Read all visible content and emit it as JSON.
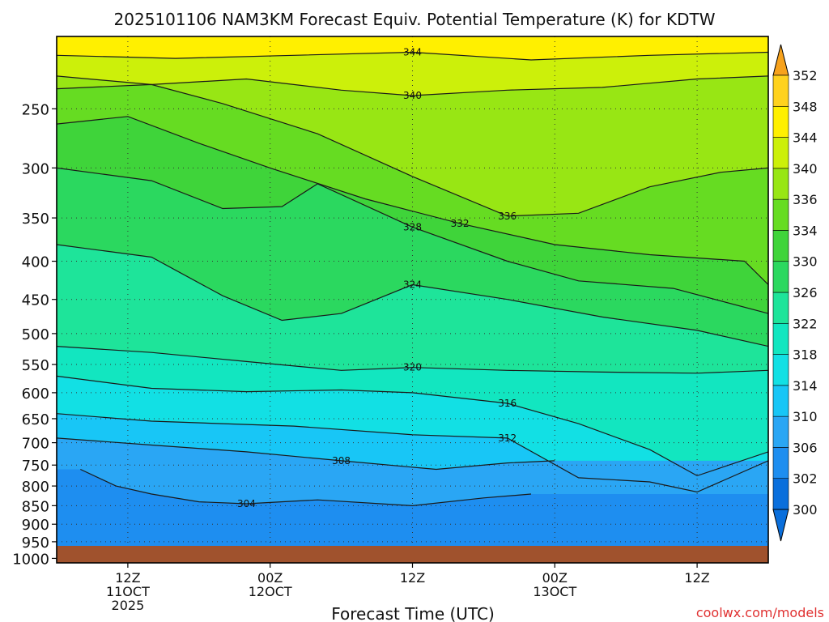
{
  "chart_data": {
    "type": "heatmap",
    "title": "2025101106 NAM3KM Forecast Equiv. Potential Temperature (K) for KDTW",
    "xlabel": "Forecast Time (UTC)",
    "ylabel": "",
    "watermark": "coolwx.com/models",
    "y_axis": {
      "scale": "log-pressure",
      "unit": "hPa",
      "range": [
        1014,
        200
      ],
      "ticks": [
        250,
        300,
        350,
        400,
        450,
        500,
        550,
        600,
        650,
        700,
        750,
        800,
        850,
        900,
        950,
        1000
      ]
    },
    "x_axis": {
      "range_hours": [
        0,
        60
      ],
      "ticks": [
        {
          "hour": 6,
          "line1": "12Z",
          "line2": "11OCT",
          "line3": "2025"
        },
        {
          "hour": 18,
          "line1": "00Z",
          "line2": "12OCT",
          "line3": ""
        },
        {
          "hour": 30,
          "line1": "12Z",
          "line2": "",
          "line3": ""
        },
        {
          "hour": 42,
          "line1": "00Z",
          "line2": "13OCT",
          "line3": ""
        },
        {
          "hour": 54,
          "line1": "12Z",
          "line2": "",
          "line3": ""
        }
      ]
    },
    "colorbar": {
      "levels": [
        300,
        302,
        306,
        310,
        314,
        318,
        322,
        326,
        330,
        334,
        336,
        340,
        344,
        348,
        352
      ],
      "colors": [
        "#0a6fdc",
        "#1e8ef0",
        "#2aa6f4",
        "#18c6f6",
        "#12e0e4",
        "#12e6c0",
        "#1ee49a",
        "#2bd85f",
        "#3fd43a",
        "#66dc22",
        "#98e614",
        "#ccf00a",
        "#fff000",
        "#ffd21e",
        "#f7a21c"
      ],
      "extend": "both"
    },
    "contours": [
      {
        "value": 344,
        "pressure_by_hour": [
          [
            0,
            212
          ],
          [
            10,
            214
          ],
          [
            20,
            212
          ],
          [
            30,
            210
          ],
          [
            40,
            215
          ],
          [
            50,
            212
          ],
          [
            60,
            210
          ]
        ]
      },
      {
        "value": 340,
        "pressure_by_hour": [
          [
            0,
            226
          ],
          [
            8,
            232
          ],
          [
            16,
            228
          ],
          [
            24,
            236
          ],
          [
            30,
            240
          ],
          [
            38,
            236
          ],
          [
            46,
            234
          ],
          [
            54,
            228
          ],
          [
            60,
            226
          ]
        ]
      },
      {
        "value": 336,
        "pressure_by_hour": [
          [
            0,
            235
          ],
          [
            8,
            232
          ],
          [
            14,
            246
          ],
          [
            22,
            270
          ],
          [
            30,
            308
          ],
          [
            38,
            348
          ],
          [
            44,
            345
          ],
          [
            50,
            318
          ],
          [
            56,
            304
          ],
          [
            60,
            300
          ]
        ]
      },
      {
        "value": 332,
        "pressure_by_hour": [
          [
            0,
            262
          ],
          [
            6,
            256
          ],
          [
            12,
            278
          ],
          [
            18,
            300
          ],
          [
            26,
            330
          ],
          [
            34,
            356
          ],
          [
            42,
            380
          ],
          [
            50,
            392
          ],
          [
            58,
            400
          ],
          [
            60,
            430
          ]
        ]
      },
      {
        "value": 328,
        "pressure_by_hour": [
          [
            0,
            300
          ],
          [
            8,
            312
          ],
          [
            14,
            340
          ],
          [
            19,
            338
          ],
          [
            22,
            315
          ],
          [
            30,
            360
          ],
          [
            38,
            400
          ],
          [
            44,
            425
          ],
          [
            52,
            435
          ],
          [
            60,
            470
          ]
        ]
      },
      {
        "value": 324,
        "pressure_by_hour": [
          [
            0,
            380
          ],
          [
            8,
            395
          ],
          [
            14,
            445
          ],
          [
            19,
            480
          ],
          [
            24,
            470
          ],
          [
            30,
            430
          ],
          [
            38,
            450
          ],
          [
            46,
            475
          ],
          [
            54,
            495
          ],
          [
            60,
            520
          ]
        ]
      },
      {
        "value": 320,
        "pressure_by_hour": [
          [
            0,
            520
          ],
          [
            8,
            530
          ],
          [
            16,
            545
          ],
          [
            24,
            560
          ],
          [
            30,
            555
          ],
          [
            38,
            560
          ],
          [
            46,
            563
          ],
          [
            54,
            565
          ],
          [
            60,
            560
          ]
        ]
      },
      {
        "value": 316,
        "pressure_by_hour": [
          [
            0,
            570
          ],
          [
            8,
            592
          ],
          [
            16,
            598
          ],
          [
            24,
            595
          ],
          [
            30,
            600
          ],
          [
            38,
            620
          ],
          [
            44,
            660
          ],
          [
            50,
            715
          ],
          [
            54,
            775
          ],
          [
            60,
            720
          ]
        ]
      },
      {
        "value": 312,
        "pressure_by_hour": [
          [
            0,
            640
          ],
          [
            8,
            655
          ],
          [
            14,
            660
          ],
          [
            20,
            665
          ],
          [
            30,
            683
          ],
          [
            38,
            690
          ],
          [
            44,
            780
          ],
          [
            50,
            790
          ],
          [
            54,
            815
          ],
          [
            60,
            740
          ]
        ]
      },
      {
        "value": 308,
        "pressure_by_hour": [
          [
            0,
            690
          ],
          [
            8,
            705
          ],
          [
            16,
            720
          ],
          [
            24,
            740
          ],
          [
            32,
            760
          ],
          [
            38,
            745
          ],
          [
            42,
            740
          ]
        ]
      },
      {
        "value": 304,
        "pressure_by_hour": [
          [
            2,
            760
          ],
          [
            5,
            800
          ],
          [
            8,
            820
          ],
          [
            12,
            840
          ],
          [
            16,
            845
          ],
          [
            22,
            835
          ],
          [
            30,
            850
          ],
          [
            36,
            830
          ],
          [
            40,
            820
          ]
        ]
      }
    ]
  }
}
